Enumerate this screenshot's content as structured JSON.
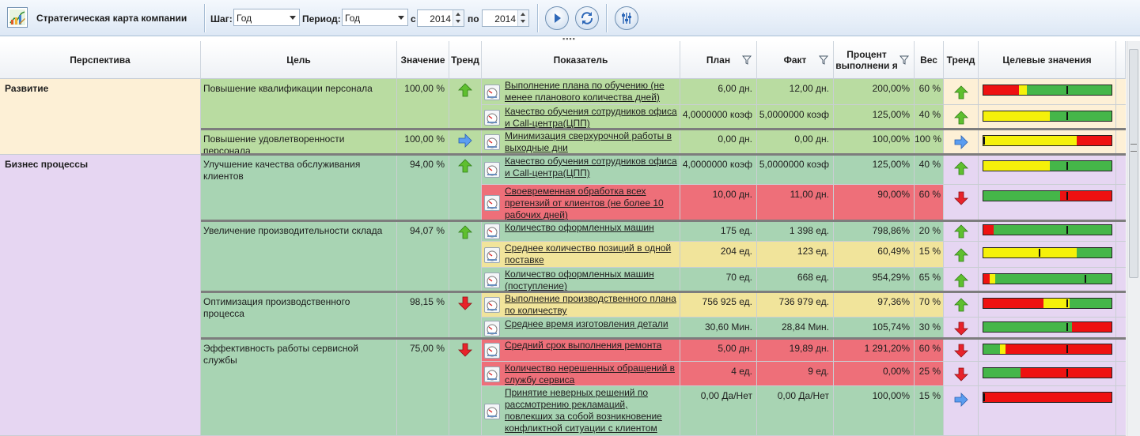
{
  "toolbar": {
    "title": "Стратегическая карта компании",
    "step_label": "Шаг:",
    "step_value": "Год",
    "period_label": "Период:",
    "period_value": "Год",
    "from_label": "с",
    "from_year": "2014",
    "to_label": "по",
    "to_year": "2014",
    "buttons": [
      "play-icon",
      "refresh-icon",
      "settings-icon"
    ]
  },
  "columns": {
    "perspective": "Перспектива",
    "goal": "Цель",
    "value": "Значение",
    "trend": "Тренд",
    "indicator": "Показатель",
    "plan": "План",
    "fact": "Факт",
    "percent": "Процент выполнени я",
    "weight": "Вес",
    "trend2": "Тренд",
    "targets": "Целевые значения"
  },
  "colors": {
    "green": "#45b649",
    "yellow": "#f5f10a",
    "red": "#ee1111",
    "row_green": "#b9dca1",
    "row_green_dark": "#a8d4b3",
    "row_red": "#ee6f79",
    "row_yellow": "#f1e49b",
    "persp_razvitie": "#fdf0d6",
    "persp_business": "#e6d6f2"
  },
  "perspectives": [
    {
      "name": "Развитие"
    },
    {
      "name": "Бизнес процессы"
    }
  ],
  "goals": [
    {
      "name": "Повышение квалификации персонала",
      "value": "100,00 %",
      "trend": "up"
    },
    {
      "name": "Повышение удовлетворенности персонала",
      "value": "100,00 %",
      "trend": "flat"
    },
    {
      "name": "Улучшение качества обслуживания клиентов",
      "value": "94,00 %",
      "trend": "up"
    },
    {
      "name": "Увеличение производительности склада",
      "value": "94,07 %",
      "trend": "up"
    },
    {
      "name": "Оптимизация производственного процесса",
      "value": "98,15 %",
      "trend": "down"
    },
    {
      "name": "Эффективность работы сервисной службы",
      "value": "75,00 %",
      "trend": "down"
    }
  ],
  "indicators": [
    {
      "name": "Выполнение плана по обучению (не менее планового количества дней)",
      "plan": "6,00 дн.",
      "fact": "12,00 дн.",
      "percent": "200,00%",
      "weight": "60 %",
      "trend": "up",
      "bar": [
        {
          "c": "red",
          "f": 0.28
        },
        {
          "c": "yellow",
          "f": 0.06
        },
        {
          "c": "green",
          "f": 0.66
        }
      ],
      "marker": 0.65
    },
    {
      "name": "Качество обучения сотрудников офиса и Call-центра(ЦПП)",
      "plan": "4,0000000 коэф",
      "fact": "5,0000000 коэф",
      "percent": "125,00%",
      "weight": "40 %",
      "trend": "up",
      "bar": [
        {
          "c": "yellow",
          "f": 0.52
        },
        {
          "c": "green",
          "f": 0.48
        }
      ],
      "marker": 0.65
    },
    {
      "name": "Минимизация сверхурочной работы в выходные дни",
      "plan": "0,00 дн.",
      "fact": "0,00 дн.",
      "percent": "100,00%",
      "weight": "100 %",
      "trend": "flat",
      "bar": [
        {
          "c": "yellow",
          "f": 0.73
        },
        {
          "c": "red",
          "f": 0.27
        }
      ],
      "marker": 0.0
    },
    {
      "name": "Качество обучения сотрудников офиса и Call-центра(ЦПП)",
      "plan": "4,0000000 коэф",
      "fact": "5,0000000 коэф",
      "percent": "125,00%",
      "weight": "40 %",
      "trend": "up",
      "bar": [
        {
          "c": "yellow",
          "f": 0.52
        },
        {
          "c": "green",
          "f": 0.48
        }
      ],
      "marker": 0.65
    },
    {
      "name": "Своевременная обработка всех претензий от клиентов (не более 10 рабочих дней)",
      "plan": "10,00 дн.",
      "fact": "11,00 дн.",
      "percent": "90,00%",
      "weight": "60 %",
      "trend": "down",
      "bar": [
        {
          "c": "green",
          "f": 0.6
        },
        {
          "c": "red",
          "f": 0.4
        }
      ],
      "marker": 0.65
    },
    {
      "name": "Количество оформленных машин",
      "plan": "175 ед.",
      "fact": "1 398 ед.",
      "percent": "798,86%",
      "weight": "20 %",
      "trend": "up",
      "bar": [
        {
          "c": "red",
          "f": 0.08
        },
        {
          "c": "green",
          "f": 0.92
        }
      ],
      "marker": 0.65
    },
    {
      "name": "Среднее количество позиций в одной поставке",
      "plan": "204 ед.",
      "fact": "123 ед.",
      "percent": "60,49%",
      "weight": "15 %",
      "trend": "up",
      "bar": [
        {
          "c": "yellow",
          "f": 0.73
        },
        {
          "c": "green",
          "f": 0.27
        }
      ],
      "marker": 0.43
    },
    {
      "name": "Количество оформленных машин (поступление)",
      "plan": "70 ед.",
      "fact": "668 ед.",
      "percent": "954,29%",
      "weight": "65 %",
      "trend": "up",
      "bar": [
        {
          "c": "red",
          "f": 0.05
        },
        {
          "c": "yellow",
          "f": 0.04
        },
        {
          "c": "green",
          "f": 0.91
        }
      ],
      "marker": 0.79
    },
    {
      "name": "Выполнение производственного плана по количеству",
      "plan": "756 925 ед.",
      "fact": "736 979 ед.",
      "percent": "97,36%",
      "weight": "70 %",
      "trend": "up",
      "bar": [
        {
          "c": "red",
          "f": 0.47
        },
        {
          "c": "yellow",
          "f": 0.2
        },
        {
          "c": "green",
          "f": 0.33
        }
      ],
      "marker": 0.65
    },
    {
      "name": "Среднее время изготовления детали",
      "plan": "30,60 Мин.",
      "fact": "28,84 Мин.",
      "percent": "105,74%",
      "weight": "30 %",
      "trend": "down",
      "bar": [
        {
          "c": "green",
          "f": 0.69
        },
        {
          "c": "red",
          "f": 0.31
        }
      ],
      "marker": 0.65
    },
    {
      "name": "Средний срок выполнения ремонта",
      "plan": "5,00 дн.",
      "fact": "19,89 дн.",
      "percent": "1 291,20%",
      "weight": "60 %",
      "trend": "down",
      "bar": [
        {
          "c": "green",
          "f": 0.13
        },
        {
          "c": "yellow",
          "f": 0.04
        },
        {
          "c": "red",
          "f": 0.83
        }
      ],
      "marker": 0.65
    },
    {
      "name": "Количество нерешенных обращений в службу сервиса",
      "plan": "4 ед.",
      "fact": "9 ед.",
      "percent": "0,00%",
      "weight": "25 %",
      "trend": "down",
      "bar": [
        {
          "c": "green",
          "f": 0.29
        },
        {
          "c": "red",
          "f": 0.71
        }
      ],
      "marker": 0.65
    },
    {
      "name": "Принятие неверных решений по рассмотрению рекламаций, повлекших за собой возникновение конфликтной ситуации с клиентом",
      "plan": "0,00 Да/Нет",
      "fact": "0,00 Да/Нет",
      "percent": "100,00%",
      "weight": "15 %",
      "trend": "flat",
      "bar": [
        {
          "c": "red",
          "f": 1.0
        }
      ],
      "marker": 0.0
    }
  ]
}
